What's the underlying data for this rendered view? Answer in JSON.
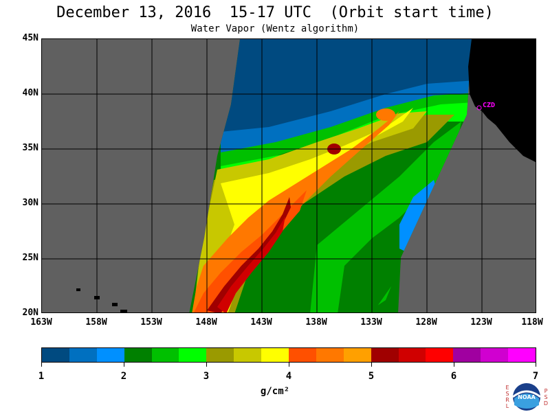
{
  "header": {
    "title": "December 13, 2016  15-17 UTC  (Orbit start time)",
    "subtitle": "Water Vapor (Wentz algorithm)"
  },
  "map": {
    "lat_labels": [
      "45N",
      "40N",
      "35N",
      "30N",
      "25N",
      "20N"
    ],
    "lon_labels": [
      "163W",
      "158W",
      "153W",
      "148W",
      "143W",
      "138W",
      "133W",
      "128W",
      "123W",
      "118W"
    ],
    "station_label": "CZD",
    "colors": {
      "no_data": "#606060",
      "land": "#000000",
      "grid": "#000000",
      "station": "#ff00ff"
    }
  },
  "colorbar": {
    "tick_labels": [
      "1",
      "2",
      "3",
      "4",
      "5",
      "6",
      "7"
    ],
    "unit_label": "g/cm²",
    "colors": [
      "#004a80",
      "#0070c0",
      "#0090ff",
      "#008000",
      "#00c000",
      "#00ff00",
      "#9a9a00",
      "#c8c800",
      "#ffff00",
      "#ff5000",
      "#ff7800",
      "#ffa000",
      "#a00000",
      "#d00000",
      "#ff0000",
      "#a000a0",
      "#d000d0",
      "#ff00ff"
    ]
  },
  "logo": {
    "text": "NOAA",
    "left_letters": [
      "E",
      "S",
      "R",
      "L"
    ],
    "right_letters": [
      "P",
      "S",
      "D"
    ]
  }
}
